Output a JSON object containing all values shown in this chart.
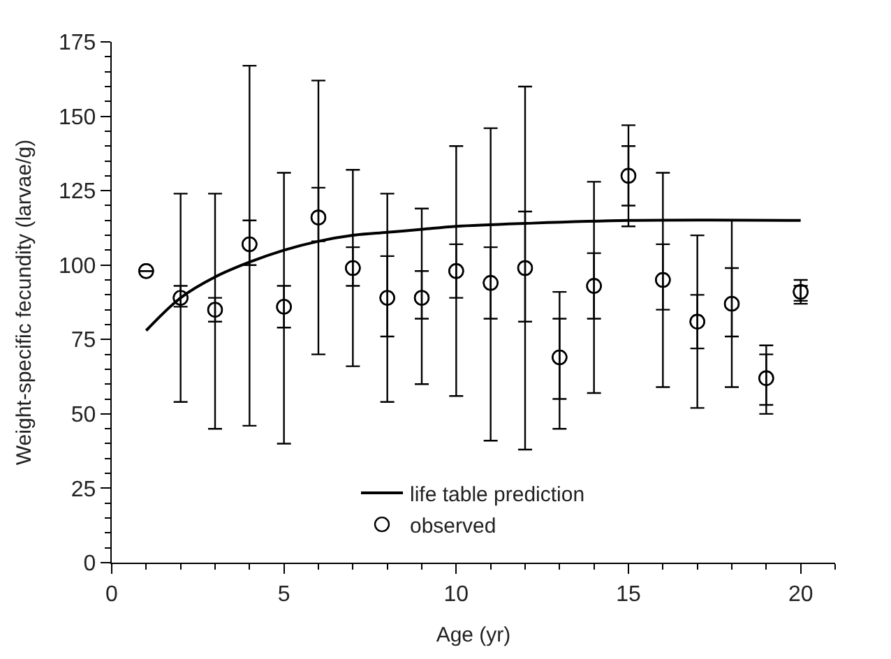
{
  "chart_data": {
    "type": "scatter",
    "xlabel": "Age (yr)",
    "ylabel": "Weight-specific fecundity (larvae/g)",
    "xlim": [
      0,
      21
    ],
    "xticks": [
      0,
      5,
      10,
      15,
      20
    ],
    "ylim": [
      0,
      175
    ],
    "yticks": [
      0,
      25,
      50,
      75,
      100,
      125,
      150,
      175
    ],
    "legend": "bottom",
    "series": [
      {
        "name": "life table prediction",
        "type": "line",
        "color": "#000000",
        "marker": "none",
        "line_style": "solid",
        "x": [
          1,
          2,
          3,
          4,
          5,
          6,
          7,
          8,
          9,
          10,
          12,
          15,
          20
        ],
        "values": [
          78,
          89,
          96,
          101,
          105,
          108,
          110,
          111,
          112,
          113,
          114,
          115,
          115
        ]
      },
      {
        "name": "observed",
        "color": "#000000",
        "marker": "circle",
        "x": [
          1,
          2,
          3,
          4,
          5,
          6,
          7,
          8,
          9,
          10,
          11,
          12,
          13,
          14,
          15,
          16,
          17,
          18,
          19,
          20
        ],
        "values": [
          98,
          89,
          85,
          107,
          86,
          116,
          99,
          89,
          89,
          98,
          94,
          99,
          69,
          93,
          130,
          95,
          81,
          87,
          62,
          91
        ],
        "errors": [
          null,
          [
            86,
            93
          ],
          [
            81,
            89
          ],
          [
            100,
            115
          ],
          [
            79,
            93
          ],
          [
            108,
            126
          ],
          [
            93,
            106
          ],
          [
            76,
            103
          ],
          [
            82,
            98
          ],
          [
            89,
            107
          ],
          [
            82,
            106
          ],
          [
            81,
            118
          ],
          [
            55,
            82
          ],
          [
            82,
            104
          ],
          [
            120,
            140
          ],
          [
            85,
            107
          ],
          [
            72,
            90
          ],
          [
            76,
            99
          ],
          [
            53,
            70
          ],
          [
            88,
            93
          ]
        ]
      },
      {
        "color": "#000000",
        "marker": "circle",
        "x": [
          1,
          2,
          3,
          4,
          5,
          6,
          7,
          8,
          9,
          10,
          11,
          12,
          13,
          14,
          15,
          16,
          17,
          18,
          19,
          20
        ],
        "values": [
          98,
          89,
          85,
          107,
          86,
          116,
          99,
          89,
          89,
          98,
          94,
          99,
          69,
          93,
          130,
          95,
          81,
          87,
          62,
          91
        ],
        "errors": [
          null,
          [
            54,
            124
          ],
          [
            45,
            124
          ],
          [
            46,
            167
          ],
          [
            40,
            131
          ],
          [
            70,
            162
          ],
          [
            66,
            132
          ],
          [
            54,
            124
          ],
          [
            60,
            119
          ],
          [
            56,
            140
          ],
          [
            41,
            146
          ],
          [
            38,
            160
          ],
          [
            45,
            91
          ],
          [
            57,
            128
          ],
          [
            113,
            147
          ],
          [
            59,
            131
          ],
          [
            52,
            110
          ],
          [
            59,
            115
          ],
          [
            50,
            73
          ],
          [
            87,
            95
          ]
        ]
      }
    ]
  }
}
